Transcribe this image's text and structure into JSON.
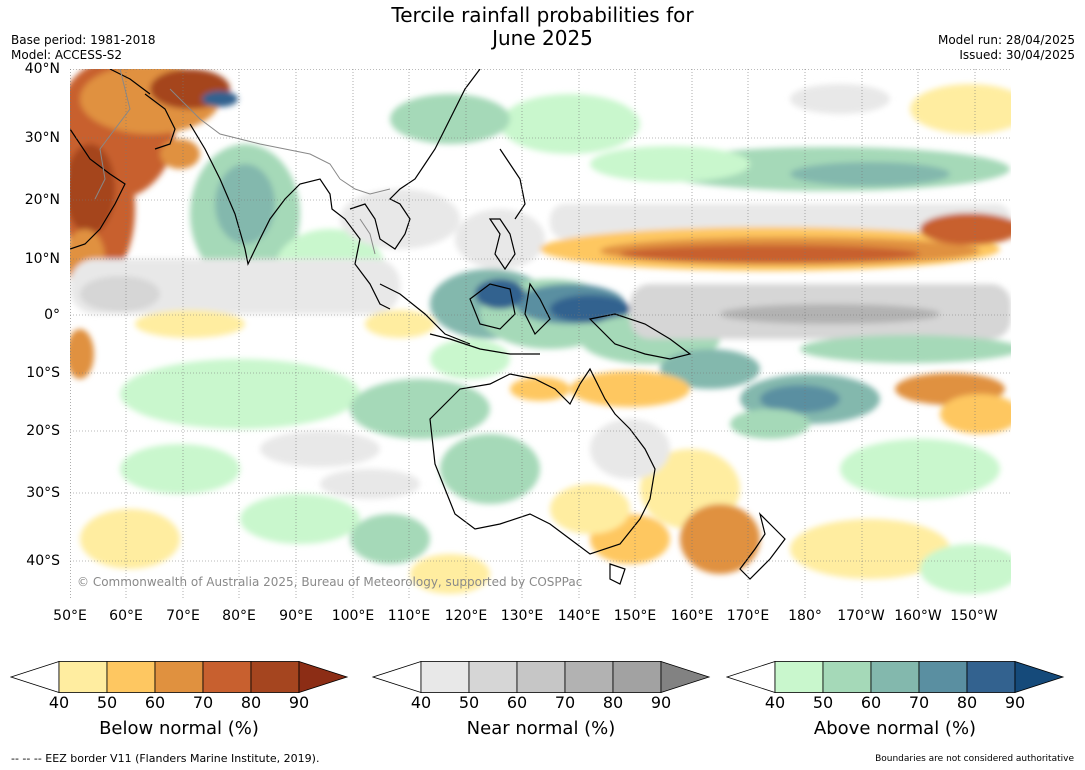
{
  "title_line1": "Tercile rainfall probabilities for",
  "title_line2": "June 2025",
  "base_period": "Base period: 1981-2018",
  "model": "Model: ACCESS-S2",
  "model_run": "Model run: 28/04/2025",
  "issued": "Issued: 30/04/2025",
  "copyright": "© Commonwealth of Australia 2025, Bureau of Meteorology, supported by COSPPac",
  "lat_labels": [
    "40°N",
    "30°N",
    "20°N",
    "10°N",
    "0°",
    "10°S",
    "20°S",
    "30°S",
    "40°S"
  ],
  "lon_labels": [
    "50°E",
    "60°E",
    "70°E",
    "80°E",
    "90°E",
    "100°E",
    "110°E",
    "120°E",
    "130°E",
    "140°E",
    "150°E",
    "160°E",
    "170°E",
    "180°",
    "170°W",
    "160°W",
    "150°W"
  ],
  "colorbars": [
    {
      "title": "Below normal (%)",
      "ticks": [
        "40",
        "50",
        "60",
        "70",
        "80",
        "90"
      ],
      "colors": [
        "#ffffff",
        "#ffeda0",
        "#fec761",
        "#e0913f",
        "#c8602f",
        "#a5451f",
        "#8c2d15"
      ]
    },
    {
      "title": "Near normal (%)",
      "ticks": [
        "40",
        "50",
        "60",
        "70",
        "80",
        "90"
      ],
      "colors": [
        "#ffffff",
        "#e8e8e8",
        "#d6d6d6",
        "#c6c6c6",
        "#b2b2b2",
        "#a2a2a2",
        "#828282"
      ]
    },
    {
      "title": "Above normal (%)",
      "ticks": [
        "40",
        "50",
        "60",
        "70",
        "80",
        "90"
      ],
      "colors": [
        "#ffffff",
        "#c9f7cd",
        "#a5d9b8",
        "#83b8ad",
        "#5a8fa1",
        "#33628f",
        "#154a7a"
      ]
    }
  ],
  "eez_note": "--  --  -- EEZ border V11 (Flanders Marine Institute, 2019).",
  "boundary_note": "Boundaries are not considered authoritative"
}
